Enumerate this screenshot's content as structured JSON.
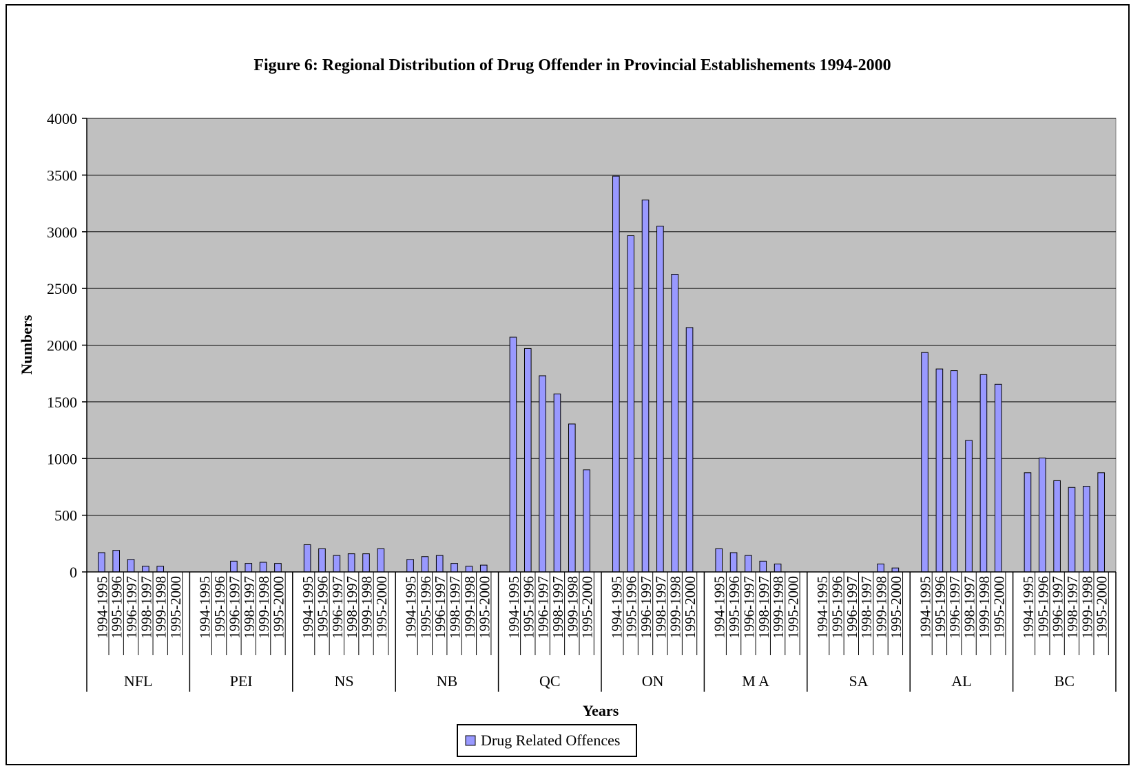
{
  "chart_data": {
    "type": "bar",
    "title": "Figure 6: Regional Distribution of Drug Offender in Provincial Establishements 1994-2000",
    "xlabel": "Years",
    "ylabel": "Numbers",
    "ylim": [
      0,
      4000
    ],
    "yticks": [
      "0",
      "500",
      "1000",
      "1500",
      "2000",
      "2500",
      "3000",
      "3500",
      "4000"
    ],
    "grid": true,
    "legend_position": "bottom-center",
    "colors": {
      "bar": "#9999ff",
      "plot_bg": "#c0c0c0",
      "grid": "#000000"
    },
    "series": [
      {
        "name": "Drug Related Offences",
        "groups": [
          {
            "label": "NFL",
            "years": [
              "1994-1995",
              "1995-1996",
              "1996-1997",
              "1998-1997",
              "1999-1998",
              "1995-2000"
            ],
            "values": [
              170,
              190,
              110,
              50,
              50,
              0
            ]
          },
          {
            "label": "PEI",
            "years": [
              "1994-1995",
              "1995-1996",
              "1996-1997",
              "1998-1997",
              "1999-1998",
              "1995-2000"
            ],
            "values": [
              0,
              0,
              95,
              75,
              85,
              75
            ]
          },
          {
            "label": "NS",
            "years": [
              "1994-1995",
              "1995-1996",
              "1996-1997",
              "1998-1997",
              "1999-1998",
              "1995-2000"
            ],
            "values": [
              240,
              205,
              145,
              160,
              160,
              205
            ]
          },
          {
            "label": "NB",
            "years": [
              "1994-1995",
              "1995-1996",
              "1996-1997",
              "1998-1997",
              "1999-1998",
              "1995-2000"
            ],
            "values": [
              110,
              135,
              145,
              75,
              50,
              60
            ]
          },
          {
            "label": "QC",
            "years": [
              "1994-1995",
              "1995-1996",
              "1996-1997",
              "1998-1997",
              "1999-1998",
              "1995-2000"
            ],
            "values": [
              2070,
              1970,
              1730,
              1570,
              1305,
              900
            ]
          },
          {
            "label": "ON",
            "years": [
              "1994-1995",
              "1995-1996",
              "1996-1997",
              "1998-1997",
              "1999-1998",
              "1995-2000"
            ],
            "values": [
              3490,
              2965,
              3280,
              3050,
              2625,
              2155
            ]
          },
          {
            "label": "M A",
            "years": [
              "1994-1995",
              "1995-1996",
              "1996-1997",
              "1998-1997",
              "1999-1998",
              "1995-2000"
            ],
            "values": [
              205,
              170,
              145,
              95,
              70,
              0
            ]
          },
          {
            "label": "SA",
            "years": [
              "1994-1995",
              "1995-1996",
              "1996-1997",
              "1998-1997",
              "1999-1998",
              "1995-2000"
            ],
            "values": [
              0,
              0,
              0,
              0,
              70,
              35
            ]
          },
          {
            "label": "AL",
            "years": [
              "1994-1995",
              "1995-1996",
              "1996-1997",
              "1998-1997",
              "1999-1998",
              "1995-2000"
            ],
            "values": [
              1935,
              1790,
              1775,
              1160,
              1740,
              1655
            ]
          },
          {
            "label": "BC",
            "years": [
              "1994-1995",
              "1995-1996",
              "1996-1997",
              "1998-1997",
              "1999-1998",
              "1995-2000"
            ],
            "values": [
              875,
              1005,
              805,
              745,
              755,
              875
            ]
          }
        ]
      }
    ]
  }
}
